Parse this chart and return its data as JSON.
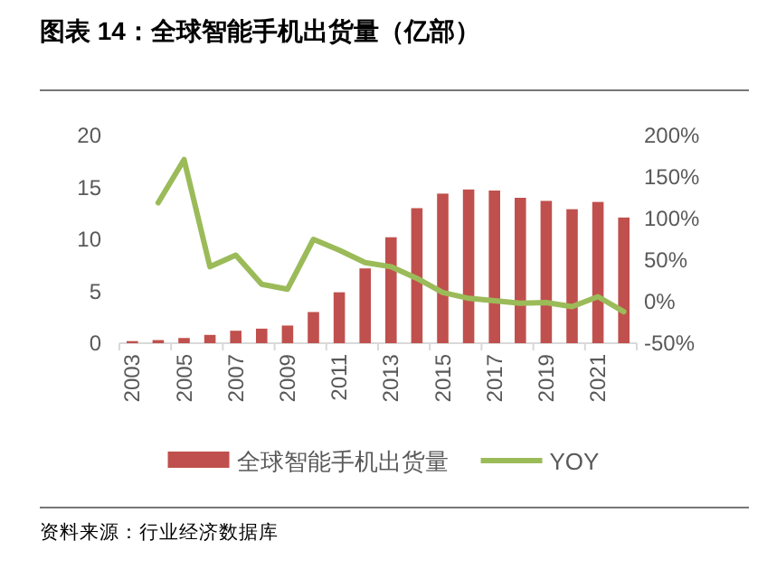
{
  "chart_data": {
    "type": "bar",
    "title": "图表 14：全球智能手机出货量（亿部）",
    "categories": [
      "2003",
      null,
      "2005",
      null,
      "2007",
      null,
      "2009",
      null,
      "2011",
      null,
      "2013",
      null,
      "2015",
      null,
      "2017",
      null,
      "2019",
      null,
      "2021",
      null
    ],
    "series": [
      {
        "name": "全球智能手机出货量",
        "color": "#c0504d",
        "values": [
          0.2,
          0.3,
          0.5,
          0.8,
          1.2,
          1.4,
          1.7,
          3.0,
          4.9,
          7.2,
          10.2,
          13.0,
          14.4,
          14.8,
          14.7,
          14.0,
          13.7,
          12.9,
          13.6,
          12.1
        ]
      },
      {
        "name": "YOY",
        "type": "line",
        "axis": "y2",
        "color": "#9bbb59",
        "values": [
          null,
          119,
          171,
          42,
          56,
          21,
          15,
          75,
          62,
          47,
          42,
          28,
          11,
          4,
          1,
          -2,
          -1,
          -6,
          6,
          -12
        ]
      }
    ],
    "ylim": [
      0,
      20
    ],
    "yticks": [
      0,
      5,
      10,
      15,
      20
    ],
    "y2lim": [
      -50,
      200
    ],
    "y2ticks": [
      {
        "value": -50,
        "label": "-50%"
      },
      {
        "value": 0,
        "label": "0%"
      },
      {
        "value": 50,
        "label": "50%"
      },
      {
        "value": 100,
        "label": "100%"
      },
      {
        "value": 150,
        "label": "150%"
      },
      {
        "value": 200,
        "label": "200%"
      }
    ],
    "legend": "bottom",
    "annotations": [
      "资料来源：行业经济数据库"
    ]
  }
}
